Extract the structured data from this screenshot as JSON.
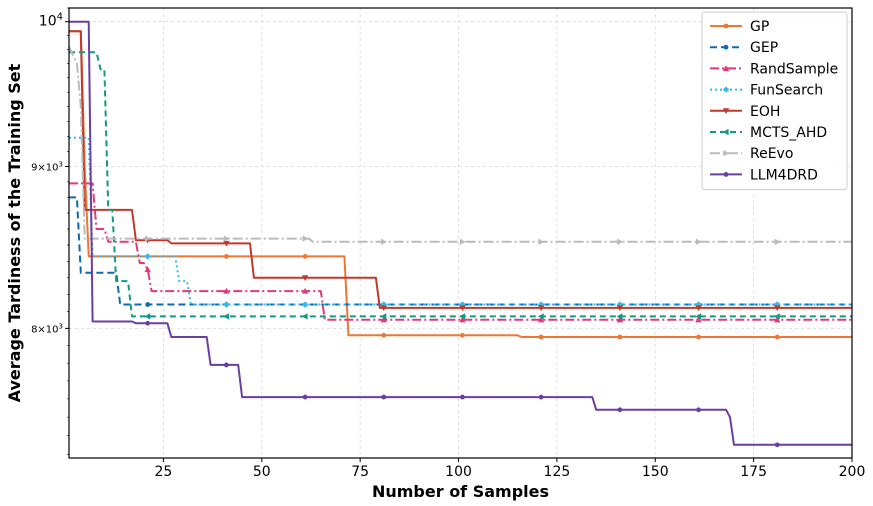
{
  "chart_data": {
    "type": "line",
    "xlabel": "Number of Samples",
    "ylabel": "Average Tardiness of the Training Set",
    "xlim": [
      1,
      200
    ],
    "ylim": [
      7280,
      10100
    ],
    "yscale": "log",
    "grid": true,
    "legend_position": "top-right",
    "x_ticks": [
      {
        "value": 25,
        "label": "25"
      },
      {
        "value": 50,
        "label": "50"
      },
      {
        "value": 75,
        "label": "75"
      },
      {
        "value": 100,
        "label": "100"
      },
      {
        "value": 125,
        "label": "125"
      },
      {
        "value": 150,
        "label": "150"
      },
      {
        "value": 175,
        "label": "175"
      },
      {
        "value": 200,
        "label": "200"
      }
    ],
    "y_ticks": [
      {
        "value": 8000,
        "base": "8",
        "times": "×10",
        "exp": "3",
        "small": true
      },
      {
        "value": 9000,
        "base": "9",
        "times": "×10",
        "exp": "3",
        "small": true
      },
      {
        "value": 10000,
        "base": "10",
        "times": "",
        "exp": "4",
        "small": false
      }
    ],
    "series": [
      {
        "name": "GP",
        "color": "#ee7733",
        "dash": "",
        "marker": "circle",
        "points": [
          [
            1,
            9930
          ],
          [
            4,
            9930
          ],
          [
            5,
            9000
          ],
          [
            6,
            8430
          ],
          [
            71,
            8430
          ],
          [
            72,
            7960
          ],
          [
            115,
            7960
          ],
          [
            116,
            7950
          ],
          [
            200,
            7950
          ]
        ],
        "markers_x": [
          21,
          41,
          61,
          81,
          101,
          121,
          141,
          161,
          181
        ]
      },
      {
        "name": "GEP",
        "color": "#0a6ab2",
        "dash": "7,4",
        "marker": "circle",
        "points": [
          [
            1,
            8800
          ],
          [
            3,
            8800
          ],
          [
            4,
            8330
          ],
          [
            13,
            8330
          ],
          [
            14,
            8140
          ],
          [
            200,
            8140
          ]
        ],
        "markers_x": [
          21,
          41,
          61,
          81,
          101,
          121,
          141,
          161,
          181
        ]
      },
      {
        "name": "RandSample",
        "color": "#e2397a",
        "dash": "9,3,2,3",
        "marker": "triangle-up",
        "points": [
          [
            1,
            8890
          ],
          [
            7,
            8890
          ],
          [
            8,
            8600
          ],
          [
            10,
            8600
          ],
          [
            11,
            8520
          ],
          [
            18,
            8520
          ],
          [
            19,
            8390
          ],
          [
            20,
            8390
          ],
          [
            21,
            8350
          ],
          [
            22,
            8220
          ],
          [
            65,
            8220
          ],
          [
            66,
            8050
          ],
          [
            200,
            8050
          ]
        ],
        "markers_x": [
          21,
          41,
          61,
          81,
          101,
          121,
          141,
          161,
          181
        ]
      },
      {
        "name": "FunSearch",
        "color": "#33bbee",
        "dash": "2,3",
        "marker": "diamond",
        "points": [
          [
            1,
            9190
          ],
          [
            6,
            9190
          ],
          [
            7,
            8430
          ],
          [
            28,
            8430
          ],
          [
            29,
            8280
          ],
          [
            31,
            8280
          ],
          [
            32,
            8140
          ],
          [
            200,
            8140
          ]
        ],
        "markers_x": [
          21,
          41,
          61,
          81,
          101,
          121,
          141,
          161,
          181
        ]
      },
      {
        "name": "EOH",
        "color": "#c0392b",
        "dash": "",
        "marker": "triangle-down",
        "points": [
          [
            1,
            9930
          ],
          [
            4,
            9930
          ],
          [
            5,
            8720
          ],
          [
            17,
            8720
          ],
          [
            18,
            8530
          ],
          [
            26,
            8530
          ],
          [
            27,
            8510
          ],
          [
            47,
            8510
          ],
          [
            48,
            8300
          ],
          [
            79,
            8300
          ],
          [
            80,
            8120
          ],
          [
            200,
            8120
          ]
        ],
        "markers_x": [
          21,
          41,
          61,
          81,
          101,
          121,
          141,
          161,
          181
        ]
      },
      {
        "name": "MCTS_AHD",
        "color": "#119988",
        "dash": "6,4",
        "marker": "triangle-left",
        "points": [
          [
            1,
            9780
          ],
          [
            8,
            9780
          ],
          [
            9,
            9660
          ],
          [
            10,
            9660
          ],
          [
            11,
            8720
          ],
          [
            12,
            8720
          ],
          [
            13,
            8280
          ],
          [
            16,
            8280
          ],
          [
            17,
            8070
          ],
          [
            200,
            8070
          ]
        ],
        "markers_x": [
          21,
          41,
          61,
          81,
          101,
          121,
          141,
          161,
          181
        ]
      },
      {
        "name": "ReEvo",
        "color": "#bbbbbb",
        "dash": "10,3,2,3",
        "marker": "triangle-right",
        "points": [
          [
            1,
            9820
          ],
          [
            3,
            9700
          ],
          [
            4,
            9400
          ],
          [
            5,
            8540
          ],
          [
            62,
            8540
          ],
          [
            63,
            8520
          ],
          [
            200,
            8520
          ]
        ],
        "markers_x": [
          21,
          41,
          61,
          81,
          101,
          121,
          141,
          161,
          181
        ]
      },
      {
        "name": "LLM4DRD",
        "color": "#6a3fa0",
        "dash": "",
        "marker": "circle",
        "points": [
          [
            1,
            10000
          ],
          [
            6,
            10000
          ],
          [
            7,
            8040
          ],
          [
            17,
            8040
          ],
          [
            18,
            8030
          ],
          [
            26,
            8030
          ],
          [
            27,
            7950
          ],
          [
            36,
            7950
          ],
          [
            37,
            7790
          ],
          [
            44,
            7790
          ],
          [
            45,
            7610
          ],
          [
            134,
            7610
          ],
          [
            135,
            7540
          ],
          [
            168,
            7540
          ],
          [
            169,
            7500
          ],
          [
            170,
            7350
          ],
          [
            200,
            7350
          ]
        ],
        "markers_x": [
          21,
          41,
          61,
          81,
          101,
          121,
          141,
          161,
          181
        ]
      }
    ]
  }
}
